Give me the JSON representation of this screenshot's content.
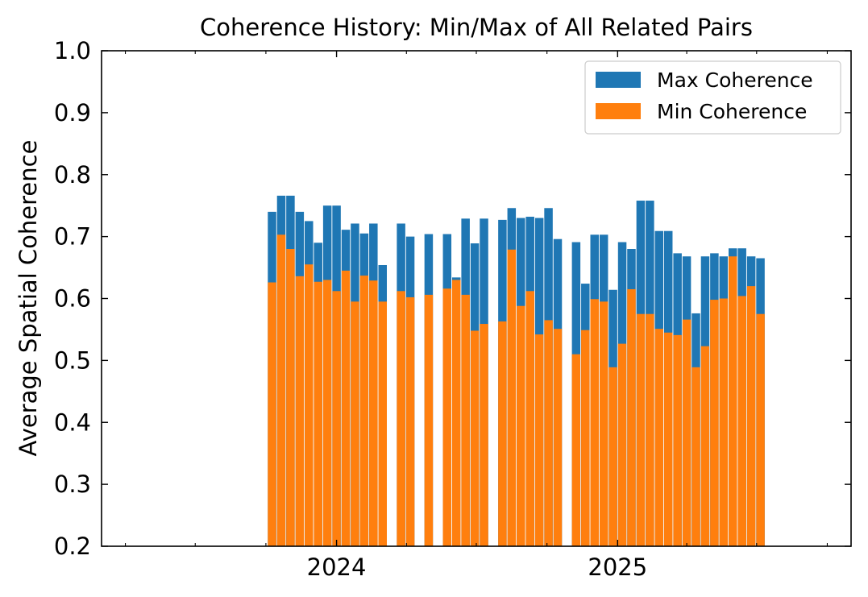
{
  "chart_data": {
    "type": "bar",
    "title": "Coherence History: Min/Max of All Related Pairs",
    "xlabel": "",
    "ylabel": "Average Spatial Coherence",
    "ylim": [
      0.2,
      1.0
    ],
    "y_ticks": [
      "0.2",
      "0.3",
      "0.4",
      "0.5",
      "0.6",
      "0.7",
      "0.8",
      "0.9",
      "1.0"
    ],
    "x_tick_labels": [
      "2024",
      "2025"
    ],
    "xlim": [
      "2023-03-01",
      "2025-11-01"
    ],
    "major_ticks": [
      "2024-01-01",
      "2025-01-01"
    ],
    "minor_ticks": [
      "2023-04-01",
      "2023-07-01",
      "2023-10-01",
      "2024-04-01",
      "2024-07-01",
      "2024-10-01",
      "2025-04-01",
      "2025-07-01",
      "2025-10-01"
    ],
    "grid": false,
    "legend": {
      "position": "top-right",
      "entries": [
        "Max Coherence",
        "Min Coherence"
      ]
    },
    "colors": {
      "max": "#1f77b4",
      "min": "#ff7f0e"
    },
    "series": [
      {
        "name": "Max Coherence",
        "values": [
          0.74,
          0.766,
          0.766,
          0.74,
          0.725,
          0.69,
          0.75,
          0.75,
          0.711,
          0.721,
          0.705,
          0.721,
          0.654,
          0.721,
          0.7,
          0.704,
          0.704,
          0.634,
          0.729,
          0.689,
          0.729,
          0.727,
          0.746,
          0.73,
          0.732,
          0.73,
          0.746,
          0.696,
          0.691,
          0.624,
          0.703,
          0.703,
          0.614,
          0.691,
          0.68,
          0.758,
          0.758,
          0.709,
          0.709,
          0.673,
          0.668,
          0.576,
          0.668,
          0.673,
          0.668,
          0.681,
          0.681,
          0.668,
          0.665
        ]
      },
      {
        "name": "Min Coherence",
        "values": [
          0.626,
          0.703,
          0.68,
          0.636,
          0.655,
          0.627,
          0.63,
          0.612,
          0.645,
          0.595,
          0.637,
          0.629,
          0.595,
          0.612,
          0.602,
          0.606,
          0.616,
          0.63,
          0.606,
          0.548,
          0.559,
          0.563,
          0.679,
          0.588,
          0.612,
          0.542,
          0.565,
          0.551,
          0.51,
          0.549,
          0.599,
          0.595,
          0.489,
          0.527,
          0.615,
          0.575,
          0.575,
          0.551,
          0.545,
          0.541,
          0.566,
          0.489,
          0.523,
          0.598,
          0.6,
          0.668,
          0.604,
          0.62,
          0.575
        ]
      }
    ],
    "x": [
      "2023-10-09",
      "2023-10-21",
      "2023-11-02",
      "2023-11-14",
      "2023-11-26",
      "2023-12-08",
      "2023-12-20",
      "2024-01-01",
      "2024-01-13",
      "2024-01-25",
      "2024-02-06",
      "2024-02-18",
      "2024-03-01",
      "2024-03-25",
      "2024-04-06",
      "2024-04-30",
      "2024-05-24",
      "2024-06-05",
      "2024-06-17",
      "2024-06-29",
      "2024-07-11",
      "2024-08-04",
      "2024-08-16",
      "2024-08-28",
      "2024-09-09",
      "2024-09-21",
      "2024-10-03",
      "2024-10-15",
      "2024-11-08",
      "2024-11-20",
      "2024-12-02",
      "2024-12-14",
      "2024-12-26",
      "2025-01-07",
      "2025-01-19",
      "2025-01-31",
      "2025-02-12",
      "2025-02-24",
      "2025-03-08",
      "2025-03-20",
      "2025-04-01",
      "2025-04-13",
      "2025-04-25",
      "2025-05-07",
      "2025-05-19",
      "2025-05-31",
      "2025-06-12",
      "2025-06-24",
      "2025-07-06"
    ]
  }
}
